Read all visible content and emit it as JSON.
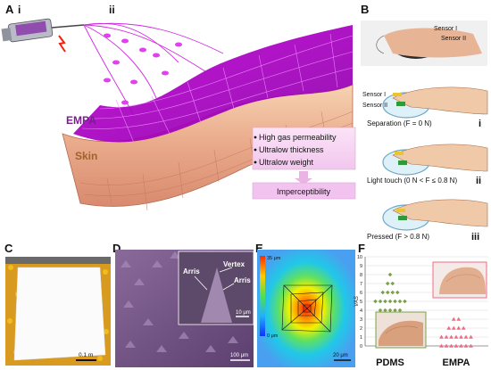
{
  "panel_a": {
    "letter": "A",
    "sub_i": "i",
    "sub_ii": "ii",
    "label_empa": "EMPA",
    "label_skin": "Skin",
    "bullets": [
      "High gas permeability",
      "Ultralow thickness",
      "Ultralow weight"
    ],
    "result": "Imperceptibility"
  },
  "panel_b": {
    "letter": "B",
    "sensor1": "Sensor I",
    "sensor2": "Sensor II",
    "states": [
      {
        "text": "Separation (F = 0 N)",
        "roman": "i"
      },
      {
        "text": "Light touch (0 N < F ≤ 0.8 N)",
        "roman": "ii"
      },
      {
        "text": "Pressed (F > 0.8 N)",
        "roman": "iii"
      }
    ]
  },
  "panel_c": {
    "letter": "C",
    "scale": "0.1 m"
  },
  "panel_d": {
    "letter": "D",
    "arris1": "Arris",
    "vertex": "Vertex",
    "arris2": "Arris",
    "inset_scale": "10 μm",
    "scale": "100 μm"
  },
  "panel_e": {
    "letter": "E",
    "scale": "20 μm",
    "cb_top": "35 μm",
    "cb_bottom": "0 μm"
  },
  "panel_f": {
    "letter": "F",
    "ylabel": "VAS",
    "yticks": [
      "0",
      "1",
      "2",
      "3",
      "4",
      "5",
      "6",
      "7",
      "8",
      "9",
      "10"
    ],
    "group1": "PDMS",
    "group2": "EMPA",
    "colors": {
      "pdms": "#7aa04a",
      "empa": "#f06a84"
    }
  },
  "chart_data": {
    "type": "scatter",
    "ylabel": "VAS",
    "ylim": [
      0,
      10
    ],
    "series": [
      {
        "name": "PDMS",
        "values": [
          8,
          7,
          7,
          6,
          6,
          6,
          6,
          5,
          5,
          5,
          5,
          5,
          5,
          5,
          4,
          4,
          4,
          4,
          4,
          3,
          3,
          3,
          2,
          2,
          2
        ]
      },
      {
        "name": "EMPA",
        "values": [
          3,
          3,
          2,
          2,
          2,
          2,
          1,
          1,
          1,
          1,
          1,
          1,
          1,
          0,
          0,
          0,
          0,
          0,
          0,
          0
        ]
      }
    ]
  }
}
